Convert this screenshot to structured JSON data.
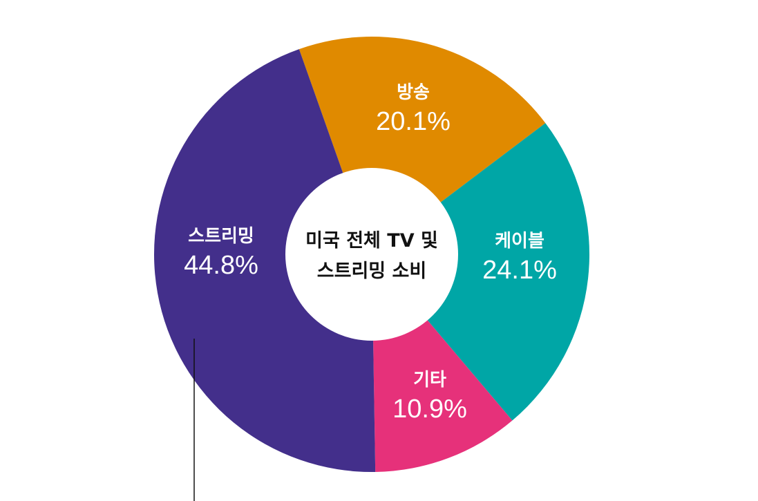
{
  "chart_data": {
    "type": "pie",
    "center_title": [
      "미국 전체 TV 및",
      "스트리밍 소비"
    ],
    "slices": [
      {
        "name": "방송",
        "value": 20.1,
        "display": "20.1%",
        "color": "#E08A00"
      },
      {
        "name": "케이블",
        "value": 24.1,
        "display": "24.1%",
        "color": "#00A6A6"
      },
      {
        "name": "기타",
        "value": 10.9,
        "display": "10.9%",
        "color": "#E6317A"
      },
      {
        "name": "스트리밍",
        "value": 44.8,
        "display": "44.8%",
        "color": "#432F8B"
      }
    ]
  }
}
